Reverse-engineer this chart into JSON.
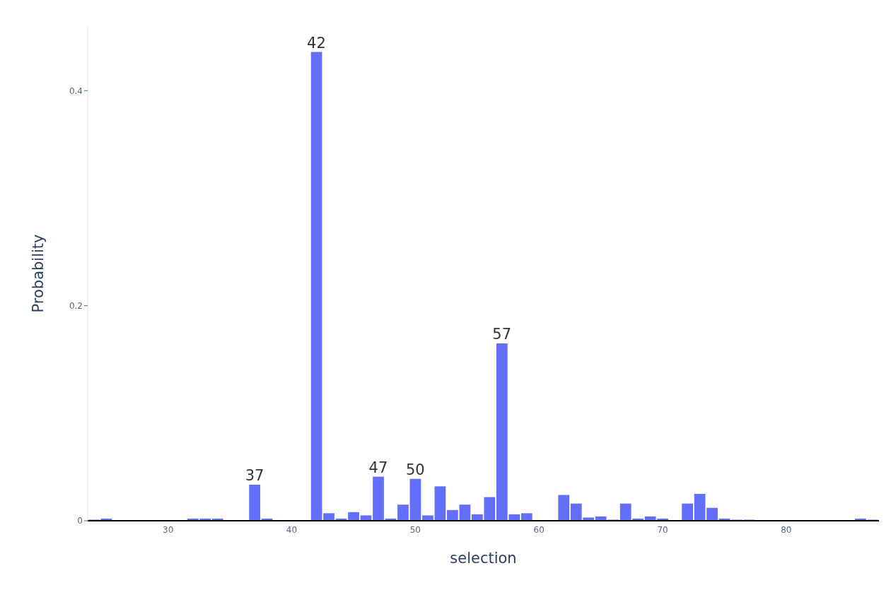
{
  "chart_data": {
    "type": "histogram",
    "xlabel": "selection",
    "ylabel": "Probability",
    "bins": [
      23.5,
      24.5,
      25.5,
      26.5,
      27.5,
      28.5,
      29.5,
      30.5,
      31.5,
      32.5,
      33.5,
      34.5,
      35.5,
      36.5,
      37.5,
      38.5,
      39.5,
      40.5,
      41.5,
      42.5,
      43.5,
      44.5,
      45.5,
      46.5,
      47.5,
      48.5,
      49.5,
      50.5,
      51.5,
      52.5,
      53.5,
      54.5,
      55.5,
      56.5,
      57.5,
      58.5,
      59.5,
      60.5,
      61.5,
      62.5,
      63.5,
      64.5,
      65.5,
      66.5,
      67.5,
      68.5,
      69.5,
      70.5,
      71.5,
      72.5,
      73.5,
      74.5,
      75.5,
      76.5,
      77.5,
      78.5,
      79.5,
      80.5,
      81.5,
      82.5,
      83.5,
      84.5,
      85.5,
      86.5,
      87.5
    ],
    "values": [
      0.001,
      0.002,
      0,
      0,
      0,
      0,
      0,
      0,
      0.002,
      0.002,
      0.002,
      0,
      0,
      0.0335,
      0.002,
      0,
      0,
      0,
      0.436,
      0.007,
      0.002,
      0.008,
      0.005,
      0.041,
      0.002,
      0.015,
      0.039,
      0.005,
      0.032,
      0.01,
      0.015,
      0.006,
      0.022,
      0.165,
      0.006,
      0.007,
      0,
      0,
      0.024,
      0.016,
      0.003,
      0.004,
      0.001,
      0.016,
      0.002,
      0.004,
      0.002,
      0,
      0.016,
      0.025,
      0.012,
      0.002,
      0.001,
      0.001,
      0,
      0,
      0,
      0,
      0,
      0,
      0,
      0,
      0.002,
      0.001
    ],
    "color": "#636efa",
    "xlim": [
      23.5,
      87.5
    ],
    "xticks": [
      30,
      40,
      50,
      60,
      70,
      80
    ],
    "ylim": [
      0,
      0.46
    ],
    "yticks": [
      0,
      0.2,
      0.4
    ],
    "grid": false,
    "annotations": [
      {
        "text": "37",
        "x": 37,
        "y": 0.0335
      },
      {
        "text": "42",
        "x": 42,
        "y": 0.436
      },
      {
        "text": "47",
        "x": 47,
        "y": 0.041
      },
      {
        "text": "50",
        "x": 50,
        "y": 0.039
      },
      {
        "text": "57",
        "x": 57,
        "y": 0.165
      }
    ]
  }
}
